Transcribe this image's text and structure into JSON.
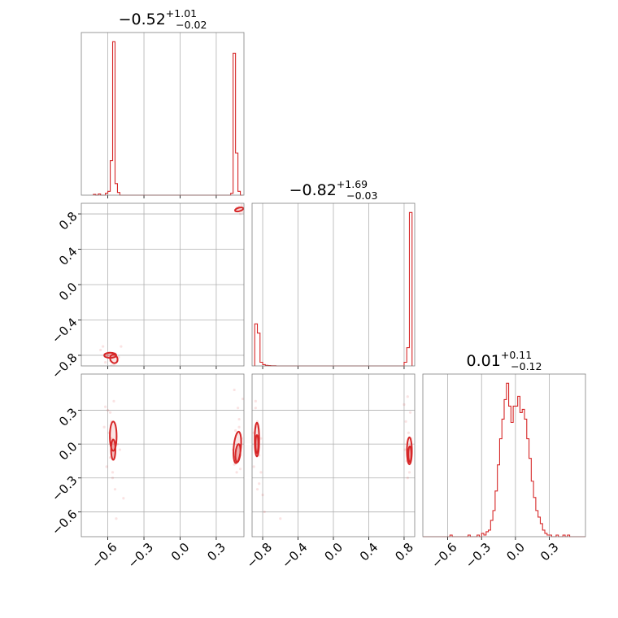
{
  "colors": {
    "series": "#d62728",
    "grid": "#b0b0b0",
    "frame": "#7f7f7f"
  },
  "titles": [
    {
      "main": "−0.52",
      "sup": "+1.01",
      "sub": "−0.02"
    },
    {
      "main": "−0.82",
      "sup": "+1.69",
      "sub": "−0.03"
    },
    {
      "main": "0.01",
      "sup": "+0.11",
      "sub": "−0.12"
    }
  ],
  "chart_data": {
    "type": "corner",
    "grid": true,
    "parameters": [
      {
        "range": [
          -0.82,
          0.53
        ],
        "ticks": [
          -0.6,
          -0.3,
          0.0,
          0.3
        ],
        "tick_labels": [
          "−0.6",
          "−0.3",
          "0.0",
          "0.3"
        ],
        "hist": {
          "edges": [
            -0.72,
            -0.7,
            -0.68,
            -0.66,
            -0.64,
            -0.62,
            -0.6,
            -0.58,
            -0.56,
            -0.54,
            -0.52,
            -0.5,
            -0.48,
            -0.46,
            0.42,
            0.44,
            0.46,
            0.48,
            0.5,
            0.52
          ],
          "counts": [
            0.2,
            0.0,
            0.3,
            0.0,
            0.0,
            0.5,
            1.0,
            9.0,
            40.0,
            3.0,
            0.7,
            0.0,
            0.0,
            0.0,
            0.5,
            37.0,
            11.0,
            1.0,
            0.0
          ]
        }
      },
      {
        "range": [
          -0.92,
          0.92
        ],
        "ticks": [
          -0.8,
          -0.4,
          0.0,
          0.4,
          0.8
        ],
        "tick_labels": [
          "−0.8",
          "−0.4",
          "0.0",
          "0.4",
          "0.8"
        ],
        "hist": {
          "edges": [
            -0.89,
            -0.86,
            -0.83,
            -0.8,
            -0.77,
            -0.74,
            -0.71,
            -0.68,
            -0.65,
            0.8,
            0.83,
            0.86,
            0.89
          ],
          "counts": [
            23.0,
            18.0,
            2.0,
            0.7,
            0.3,
            0.2,
            0.1,
            0.1,
            0.0,
            2.0,
            10.0,
            84.0
          ]
        }
      },
      {
        "range": [
          -0.82,
          0.62
        ],
        "ticks": [
          -0.6,
          -0.3,
          0.0,
          0.3
        ],
        "tick_labels": [
          "−0.6",
          "−0.3",
          "0.0",
          "0.3"
        ],
        "hist": {
          "edges": [
            -0.82,
            -0.8,
            -0.78,
            -0.76,
            -0.74,
            -0.72,
            -0.7,
            -0.68,
            -0.66,
            -0.64,
            -0.62,
            -0.6,
            -0.58,
            -0.56,
            -0.54,
            -0.52,
            -0.5,
            -0.48,
            -0.46,
            -0.44,
            -0.42,
            -0.4,
            -0.38,
            -0.36,
            -0.34,
            -0.32,
            -0.3,
            -0.28,
            -0.26,
            -0.24,
            -0.22,
            -0.2,
            -0.18,
            -0.16,
            -0.14,
            -0.12,
            -0.1,
            -0.08,
            -0.06,
            -0.04,
            -0.02,
            0.0,
            0.02,
            0.04,
            0.06,
            0.08,
            0.1,
            0.12,
            0.14,
            0.16,
            0.18,
            0.2,
            0.22,
            0.24,
            0.26,
            0.28,
            0.3,
            0.32,
            0.34,
            0.36,
            0.38,
            0.4,
            0.42,
            0.44,
            0.46,
            0.48,
            0.5,
            0.52,
            0.54,
            0.56,
            0.58,
            0.6,
            0.62
          ],
          "counts": [
            0,
            0,
            0,
            0,
            0,
            0,
            0,
            0,
            0,
            0,
            0,
            0,
            0.5,
            0,
            0,
            0,
            0,
            0,
            0,
            0,
            0.5,
            0,
            0,
            0,
            0.5,
            0,
            1.0,
            0.5,
            1.5,
            2,
            5,
            8,
            14,
            22,
            30,
            36,
            42,
            47,
            40,
            35,
            40,
            40,
            43,
            38,
            39,
            36,
            30,
            24,
            17,
            12,
            8,
            6,
            4,
            2,
            1,
            0.5,
            0.5,
            0,
            0,
            0.5,
            0,
            0,
            0.5,
            0,
            0.5,
            0,
            0,
            0,
            0,
            0,
            0,
            0
          ]
        }
      }
    ],
    "pairs": [
      {
        "row": 1,
        "col": 0,
        "points": [
          [
            -0.62,
            -0.88
          ],
          [
            -0.64,
            -0.7
          ],
          [
            -0.58,
            -0.86
          ],
          [
            -0.56,
            -0.8
          ],
          [
            -0.54,
            -0.78
          ],
          [
            -0.52,
            -0.86
          ],
          [
            -0.55,
            -0.9
          ],
          [
            -0.6,
            -0.8
          ],
          [
            -0.49,
            -0.7
          ],
          [
            -0.66,
            -0.74
          ],
          [
            -0.51,
            -0.82
          ],
          [
            -0.57,
            -0.92
          ],
          [
            -0.59,
            -0.77
          ],
          [
            0.48,
            0.86
          ],
          [
            0.5,
            0.84
          ],
          [
            0.49,
            0.88
          ],
          [
            0.52,
            0.82
          ],
          [
            0.47,
            0.87
          ],
          [
            0.51,
            0.9
          ],
          [
            0.5,
            0.8
          ],
          [
            0.46,
            0.84
          ]
        ],
        "blobs": [
          {
            "cx": -0.55,
            "cy": -0.84,
            "rx": 0.03,
            "ry": 0.05,
            "rot": -25
          },
          {
            "cx": -0.58,
            "cy": -0.8,
            "rx": 0.05,
            "ry": 0.03,
            "rot": 0
          },
          {
            "cx": 0.49,
            "cy": 0.85,
            "rx": 0.035,
            "ry": 0.02,
            "rot": -15
          }
        ]
      },
      {
        "row": 2,
        "col": 0,
        "points": [
          [
            -0.62,
            0.33
          ],
          [
            -0.6,
            0.3
          ],
          [
            -0.58,
            0.28
          ],
          [
            -0.56,
            -0.3
          ],
          [
            -0.57,
            0.2
          ],
          [
            -0.54,
            -0.4
          ],
          [
            -0.56,
            -0.25
          ],
          [
            -0.58,
            -0.12
          ],
          [
            -0.59,
            0.1
          ],
          [
            -0.55,
            0.38
          ],
          [
            -0.53,
            -0.66
          ],
          [
            -0.57,
            0.05
          ],
          [
            -0.5,
            -0.05
          ],
          [
            -0.52,
            0.0
          ],
          [
            -0.61,
            -0.2
          ],
          [
            -0.47,
            -0.48
          ],
          [
            -0.63,
            0.15
          ],
          [
            0.45,
            -0.18
          ],
          [
            0.46,
            0.12
          ],
          [
            0.47,
            -0.25
          ],
          [
            0.49,
            0.22
          ],
          [
            0.5,
            -0.1
          ],
          [
            0.51,
            0.05
          ],
          [
            0.48,
            0.32
          ],
          [
            0.44,
            -0.05
          ],
          [
            0.52,
            0.4
          ],
          [
            0.45,
            0.48
          ],
          [
            0.5,
            -0.22
          ],
          [
            0.49,
            0.15
          ]
        ],
        "blobs": [
          {
            "cx": -0.555,
            "cy": 0.07,
            "rx": 0.028,
            "ry": 0.13,
            "rot": 0
          },
          {
            "cx": -0.555,
            "cy": -0.05,
            "rx": 0.018,
            "ry": 0.09,
            "rot": 0
          },
          {
            "cx": 0.475,
            "cy": -0.03,
            "rx": 0.03,
            "ry": 0.14,
            "rot": 5
          },
          {
            "cx": 0.48,
            "cy": -0.08,
            "rx": 0.02,
            "ry": 0.08,
            "rot": 5
          }
        ]
      },
      {
        "row": 2,
        "col": 1,
        "points": [
          [
            -0.88,
            0.32
          ],
          [
            -0.86,
            0.2
          ],
          [
            -0.9,
            0.1
          ],
          [
            -0.84,
            -0.35
          ],
          [
            -0.82,
            -0.25
          ],
          [
            -0.86,
            -0.4
          ],
          [
            -0.8,
            -0.45
          ],
          [
            -0.88,
            0.38
          ],
          [
            -0.84,
            -0.1
          ],
          [
            -0.82,
            0.05
          ],
          [
            -0.78,
            -0.6
          ],
          [
            -0.6,
            -0.66
          ],
          [
            -0.9,
            -0.2
          ],
          [
            -0.86,
            0.15
          ],
          [
            0.8,
            0.35
          ],
          [
            0.82,
            0.2
          ],
          [
            0.84,
            -0.3
          ],
          [
            0.86,
            -0.25
          ],
          [
            0.85,
            0.1
          ],
          [
            0.83,
            -0.15
          ],
          [
            0.88,
            0.05
          ],
          [
            0.87,
            0.28
          ],
          [
            0.81,
            -0.05
          ],
          [
            0.84,
            0.42
          ]
        ],
        "blobs": [
          {
            "cx": -0.865,
            "cy": 0.04,
            "rx": 0.025,
            "ry": 0.15,
            "rot": 0
          },
          {
            "cx": -0.865,
            "cy": 0.0,
            "rx": 0.016,
            "ry": 0.08,
            "rot": 0
          },
          {
            "cx": 0.86,
            "cy": -0.06,
            "rx": 0.028,
            "ry": 0.12,
            "rot": 0
          },
          {
            "cx": 0.865,
            "cy": -0.09,
            "rx": 0.017,
            "ry": 0.07,
            "rot": 0
          }
        ]
      }
    ]
  }
}
